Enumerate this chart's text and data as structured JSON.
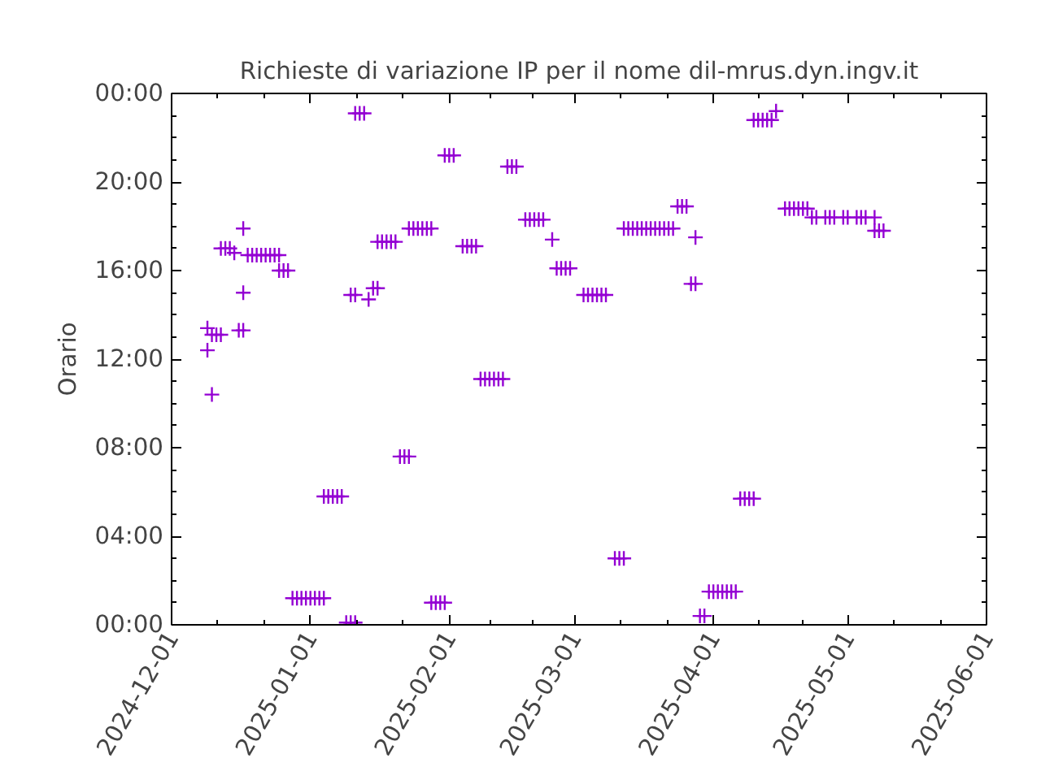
{
  "chart_data": {
    "type": "scatter",
    "title": "Richieste di variazione IP per il nome dil-mrus.dyn.ingv.it",
    "ylabel": "Orario",
    "marker": "cross",
    "grid": false,
    "xlim": [
      "2024-12-01",
      "2025-06-01"
    ],
    "xticks": [
      "2024-12-01",
      "2025-01-01",
      "2025-02-01",
      "2025-03-01",
      "2025-04-01",
      "2025-05-01",
      "2025-06-01"
    ],
    "ylim": [
      0,
      24
    ],
    "yticks": [
      {
        "value": 0,
        "label": "00:00"
      },
      {
        "value": 4,
        "label": "04:00"
      },
      {
        "value": 8,
        "label": "08:00"
      },
      {
        "value": 12,
        "label": "12:00"
      },
      {
        "value": 16,
        "label": "16:00"
      },
      {
        "value": 20,
        "label": "20:00"
      },
      {
        "value": 24,
        "label": "00:00"
      }
    ],
    "series": [
      {
        "color": "#9400d3",
        "x": [
          "2024-12-09",
          "2024-12-09",
          "2024-12-10",
          "2024-12-10",
          "2024-12-11",
          "2024-12-12",
          "2024-12-12",
          "2024-12-13",
          "2024-12-14",
          "2024-12-15",
          "2024-12-17",
          "2024-12-17",
          "2024-12-16",
          "2024-12-17",
          "2024-12-18",
          "2024-12-19",
          "2024-12-20",
          "2024-12-21",
          "2024-12-22",
          "2024-12-23",
          "2024-12-24",
          "2024-12-25",
          "2024-12-25",
          "2024-12-26",
          "2024-12-27",
          "2024-12-28",
          "2024-12-29",
          "2024-12-30",
          "2024-12-31",
          "2025-01-01",
          "2025-01-02",
          "2025-01-03",
          "2025-01-04",
          "2025-01-04",
          "2025-01-05",
          "2025-01-06",
          "2025-01-07",
          "2025-01-08",
          "2025-01-09",
          "2025-01-10",
          "2025-01-11",
          "2025-01-11",
          "2025-01-12",
          "2025-01-13",
          "2025-01-10",
          "2025-01-11",
          "2025-01-14",
          "2025-01-15",
          "2025-01-16",
          "2025-01-16",
          "2025-01-17",
          "2025-01-18",
          "2025-01-19",
          "2025-01-20",
          "2025-01-21",
          "2025-01-22",
          "2025-01-23",
          "2025-01-23",
          "2025-01-24",
          "2025-01-25",
          "2025-01-26",
          "2025-01-27",
          "2025-01-28",
          "2025-01-28",
          "2025-01-29",
          "2025-01-30",
          "2025-01-31",
          "2025-01-31",
          "2025-02-01",
          "2025-02-02",
          "2025-02-04",
          "2025-02-05",
          "2025-02-06",
          "2025-02-07",
          "2025-02-08",
          "2025-02-09",
          "2025-02-10",
          "2025-02-11",
          "2025-02-12",
          "2025-02-13",
          "2025-02-14",
          "2025-02-15",
          "2025-02-16",
          "2025-02-18",
          "2025-02-19",
          "2025-02-20",
          "2025-02-21",
          "2025-02-22",
          "2025-02-24",
          "2025-02-25",
          "2025-02-26",
          "2025-02-27",
          "2025-02-28",
          "2025-03-03",
          "2025-03-04",
          "2025-03-05",
          "2025-03-06",
          "2025-03-07",
          "2025-03-08",
          "2025-03-10",
          "2025-03-11",
          "2025-03-12",
          "2025-03-12",
          "2025-03-13",
          "2025-03-14",
          "2025-03-15",
          "2025-03-16",
          "2025-03-17",
          "2025-03-18",
          "2025-03-19",
          "2025-03-20",
          "2025-03-21",
          "2025-03-22",
          "2025-03-23",
          "2025-03-24",
          "2025-03-25",
          "2025-03-26",
          "2025-03-28",
          "2025-03-27",
          "2025-03-28",
          "2025-03-29",
          "2025-03-30",
          "2025-03-31",
          "2025-04-01",
          "2025-04-02",
          "2025-04-03",
          "2025-04-04",
          "2025-04-05",
          "2025-04-06",
          "2025-04-07",
          "2025-04-08",
          "2025-04-09",
          "2025-04-10",
          "2025-04-10",
          "2025-04-11",
          "2025-04-12",
          "2025-04-13",
          "2025-04-14",
          "2025-04-15",
          "2025-04-17",
          "2025-04-18",
          "2025-04-19",
          "2025-04-20",
          "2025-04-21",
          "2025-04-22",
          "2025-04-23",
          "2025-04-24",
          "2025-04-26",
          "2025-04-27",
          "2025-04-28",
          "2025-04-30",
          "2025-05-01",
          "2025-05-03",
          "2025-05-04",
          "2025-05-05",
          "2025-05-07",
          "2025-05-07",
          "2025-05-08",
          "2025-05-09"
        ],
        "values": [
          13.4,
          12.4,
          10.4,
          13.1,
          13.1,
          13.1,
          17.0,
          17.0,
          17.0,
          16.8,
          17.9,
          15.0,
          13.3,
          13.3,
          16.7,
          16.7,
          16.7,
          16.7,
          16.7,
          16.7,
          16.7,
          16.7,
          16.0,
          16.0,
          16.0,
          1.2,
          1.2,
          1.2,
          1.2,
          1.2,
          1.2,
          1.2,
          1.2,
          5.8,
          5.8,
          5.8,
          5.8,
          5.8,
          0.1,
          0.1,
          0.1,
          23.1,
          23.1,
          23.1,
          14.9,
          14.9,
          14.7,
          15.2,
          15.2,
          17.3,
          17.3,
          17.3,
          17.3,
          17.3,
          7.6,
          7.6,
          7.6,
          17.9,
          17.9,
          17.9,
          17.9,
          17.9,
          17.9,
          1.0,
          1.0,
          1.0,
          1.0,
          21.2,
          21.2,
          21.2,
          17.1,
          17.1,
          17.1,
          17.1,
          11.1,
          11.1,
          11.1,
          11.1,
          11.1,
          11.1,
          20.7,
          20.7,
          20.7,
          18.3,
          18.3,
          18.3,
          18.3,
          18.3,
          17.4,
          16.1,
          16.1,
          16.1,
          16.1,
          14.9,
          14.9,
          14.9,
          14.9,
          14.9,
          14.9,
          3.0,
          3.0,
          3.0,
          17.9,
          17.9,
          17.9,
          17.9,
          17.9,
          17.9,
          17.9,
          17.9,
          17.9,
          17.9,
          17.9,
          17.9,
          18.9,
          18.9,
          18.9,
          17.5,
          15.4,
          15.4,
          0.4,
          0.4,
          1.5,
          1.5,
          1.5,
          1.5,
          1.5,
          1.5,
          1.5,
          5.7,
          5.7,
          5.7,
          5.7,
          22.8,
          22.8,
          22.8,
          22.8,
          22.8,
          23.2,
          18.8,
          18.8,
          18.8,
          18.8,
          18.8,
          18.8,
          18.4,
          18.4,
          18.4,
          18.4,
          18.4,
          18.4,
          18.4,
          18.4,
          18.4,
          18.4,
          18.4,
          17.8,
          17.8,
          17.8
        ]
      }
    ]
  }
}
